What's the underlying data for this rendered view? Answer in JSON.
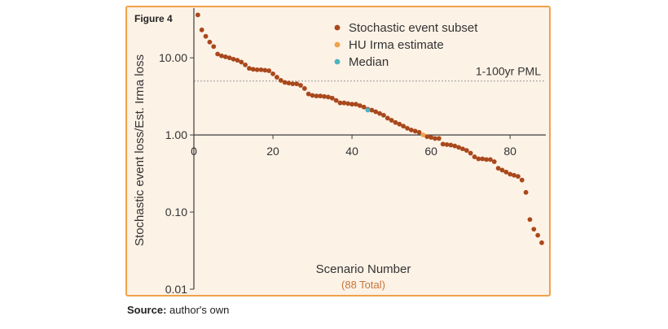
{
  "figure_label": "Figure 4",
  "source": {
    "label": "Source:",
    "text": "author's own"
  },
  "colors": {
    "panel_bg": "#fdf2e6",
    "border": "#f0a24a",
    "point": "#a9481c",
    "highlight": "#f0a24a",
    "median": "#4cb3c3",
    "axis": "#3d3d3d",
    "refline": "#9a9a9a",
    "subtitle": "#c4753a"
  },
  "chart_data": {
    "type": "scatter",
    "title": "",
    "xlabel": "Scenario Number",
    "xlabel_sub": "(88 Total)",
    "ylabel": "Stochastic event loss/Est. Irma loss",
    "yscale": "log",
    "ylim": [
      0.01,
      40
    ],
    "xlim": [
      0,
      88
    ],
    "x_ticks": [
      0,
      20,
      40,
      60,
      80
    ],
    "x_tick_labels": [
      "0",
      "20",
      "40",
      "60",
      "80"
    ],
    "y_ticks": [
      0.01,
      0.1,
      1,
      10
    ],
    "y_tick_labels": [
      "0.01",
      "0.10",
      "1.00",
      "10.00"
    ],
    "x_axis_crosses_y": 1,
    "reference_line": {
      "y": 5,
      "label": "1-100yr PML"
    },
    "legend_position": "top-right",
    "series": [
      {
        "name": "Stochastic event subset",
        "x": [
          1,
          2,
          3,
          4,
          5,
          6,
          7,
          8,
          9,
          10,
          11,
          12,
          13,
          14,
          15,
          16,
          17,
          18,
          19,
          20,
          21,
          22,
          23,
          24,
          25,
          26,
          27,
          28,
          29,
          30,
          31,
          32,
          33,
          34,
          35,
          36,
          37,
          38,
          39,
          40,
          41,
          42,
          43,
          44,
          45,
          46,
          47,
          48,
          49,
          50,
          51,
          52,
          53,
          54,
          55,
          56,
          57,
          59,
          60,
          61,
          62,
          63,
          64,
          65,
          66,
          67,
          68,
          69,
          70,
          71,
          72,
          73,
          74,
          75,
          76,
          77,
          78,
          79,
          80,
          81,
          82,
          83,
          84,
          85,
          86,
          87,
          88
        ],
        "y": [
          36,
          23,
          19,
          16,
          14,
          11.2,
          10.6,
          10.3,
          10,
          9.6,
          9.3,
          8.8,
          8.1,
          7.3,
          7.1,
          7,
          7,
          6.9,
          6.8,
          6.2,
          5.6,
          5.1,
          4.8,
          4.7,
          4.6,
          4.6,
          4.4,
          4,
          3.4,
          3.25,
          3.2,
          3.2,
          3.15,
          3.1,
          3,
          2.8,
          2.6,
          2.6,
          2.55,
          2.5,
          2.5,
          2.4,
          2.3,
          2.15,
          2.1,
          2,
          1.9,
          1.8,
          1.65,
          1.55,
          1.45,
          1.38,
          1.3,
          1.22,
          1.16,
          1.12,
          1.08,
          0.95,
          0.93,
          0.9,
          0.9,
          0.76,
          0.75,
          0.74,
          0.72,
          0.69,
          0.66,
          0.63,
          0.58,
          0.52,
          0.49,
          0.49,
          0.48,
          0.48,
          0.45,
          0.37,
          0.35,
          0.33,
          0.31,
          0.3,
          0.29,
          0.26,
          0.18,
          0.08,
          0.06,
          0.05,
          0.04
        ]
      },
      {
        "name": "HU Irma estimate",
        "x": [
          58
        ],
        "y": [
          1
        ]
      },
      {
        "name": "Median",
        "x": [
          44
        ],
        "y": [
          2.1
        ]
      }
    ]
  }
}
